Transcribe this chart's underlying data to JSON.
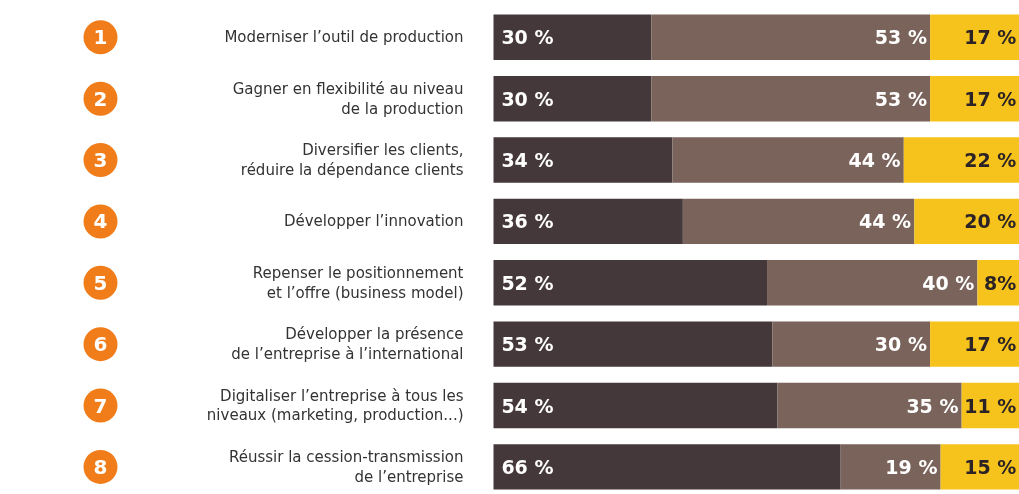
{
  "chart_data": {
    "type": "bar",
    "orientation": "horizontal",
    "stacked": true,
    "xlim": [
      0,
      100
    ],
    "tick_labels": false,
    "categories": [
      "Moderniser l’outil de production",
      "Gagner en flexibilité au niveau\nde la production",
      "Diversifier les clients,\nréduire la dépendance clients",
      "Développer l’innovation",
      "Repenser le positionnement\net l’offre (business model)",
      "Développer la présence\nde l’entreprise à l’international",
      "Digitaliser l’entreprise à tous les\nniveaux (marketing, production...)",
      "Réussir la cession-transmission\nde l’entreprise"
    ],
    "series": [
      {
        "color": "#45383a",
        "values": [
          30,
          30,
          34,
          36,
          52,
          53,
          54,
          66
        ],
        "value_labels": [
          "30 %",
          "30 %",
          "34 %",
          "36 %",
          "52 %",
          "53 %",
          "54 %",
          "66 %"
        ]
      },
      {
        "color": "#7a635b",
        "values": [
          53,
          53,
          44,
          44,
          40,
          30,
          35,
          19
        ],
        "value_labels": [
          "53 %",
          "53 %",
          "44 %",
          "44 %",
          "40 %",
          "30 %",
          "35 %",
          "19 %"
        ]
      },
      {
        "color": "#f6c31c",
        "values": [
          17,
          17,
          22,
          20,
          8,
          17,
          11,
          15
        ],
        "value_labels": [
          "17 %",
          "17 %",
          "22 %",
          "20 %",
          "8%",
          "17 %",
          "11 %",
          "15 %"
        ]
      }
    ],
    "annotations": [
      "1",
      "2",
      "3",
      "4",
      "5",
      "6",
      "7",
      "8"
    ]
  }
}
